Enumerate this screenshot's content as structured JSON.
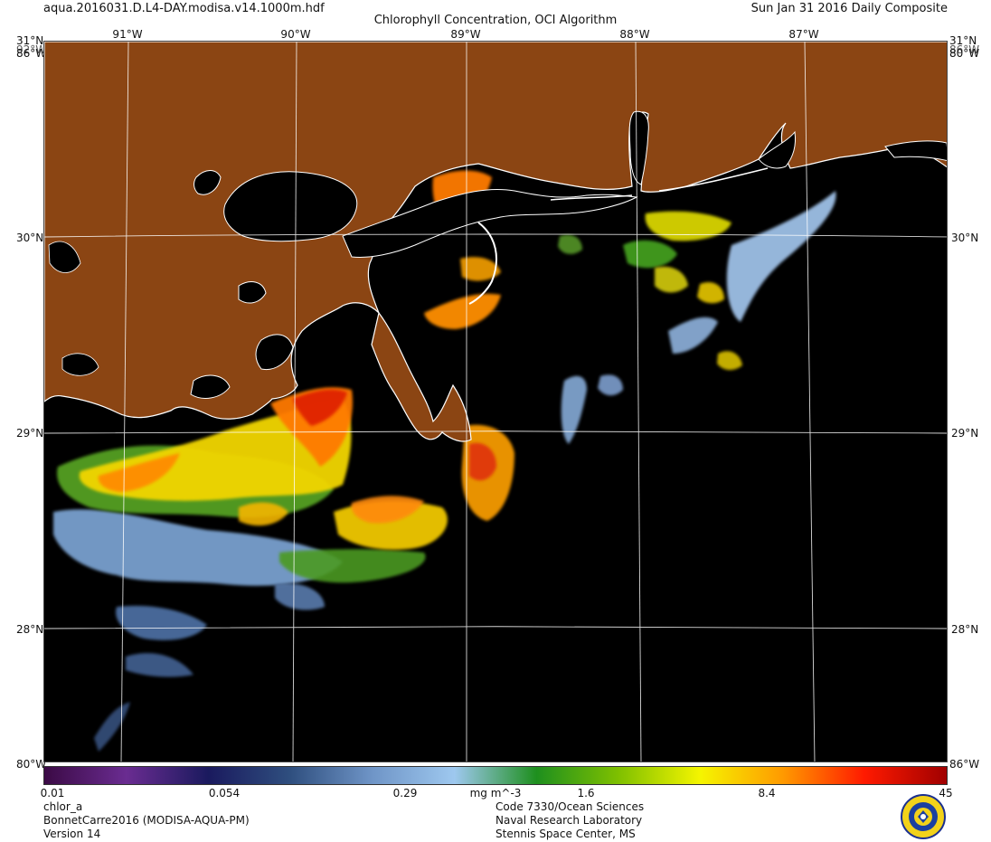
{
  "header": {
    "filename": "aqua.2016031.D.L4-DAY.modisa.v14.1000m.hdf",
    "title": "Chlorophyll Concentration, OCI Algorithm",
    "date": "Sun Jan 31 2016 Daily Composite"
  },
  "map": {
    "top_lon_labels": [
      "91°W",
      "90°W",
      "89°W",
      "88°W",
      "87°W"
    ],
    "lat_labels_left": [
      "31°N",
      "30°N",
      "29°N",
      "28°N"
    ],
    "lat_labels_right": [
      "31°N",
      "30°N",
      "29°N",
      "28°N"
    ],
    "corner_labels": {
      "top_left_a": "31°N",
      "top_left_b": "92°W",
      "top_left_c": "86°W",
      "top_right_a": "31°N",
      "top_right_b": "86°W",
      "top_right_c": "80°W",
      "bottom_left": "80°W",
      "bottom_right": "86°W"
    },
    "colors": {
      "land": "#8b4513",
      "water_nodata": "#000000",
      "coastline": "#ffffff",
      "graticule": "#ffffff"
    }
  },
  "colorbar": {
    "tick_labels": [
      "0.01",
      "0.054",
      "0.29",
      "mg m^-3",
      "1.6",
      "8.4",
      "45"
    ],
    "scale": "log",
    "range": [
      0.01,
      45
    ],
    "colors": [
      "#3b0a45",
      "#6a2c91",
      "#1a1a5e",
      "#2f4f7f",
      "#6f95c7",
      "#9ec8ef",
      "#1e8f1e",
      "#7fc000",
      "#f5f500",
      "#ff9a00",
      "#ff1a00",
      "#a00000"
    ]
  },
  "footer": {
    "product": "chlor_a",
    "event": "BonnetCarre2016 (MODISA-AQUA-PM)",
    "version": "Version 14",
    "org_line1": "Code 7330/Ocean Sciences",
    "org_line2": "Naval Research Laboratory",
    "org_line3": "Stennis Space Center, MS",
    "emblem_icon": "nrl-seal-icon"
  }
}
